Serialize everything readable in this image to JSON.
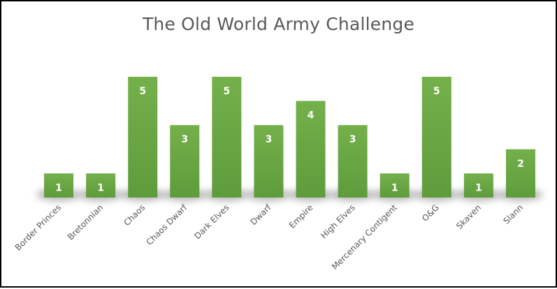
{
  "chart_data": {
    "type": "bar",
    "title": "The Old World Army Challenge",
    "xlabel": "",
    "ylabel": "",
    "categories": [
      "Border Princes",
      "Bretonnian",
      "Chaos",
      "Chaos Dwarf",
      "Dark Elves",
      "Dwarf",
      "Empire",
      "High Elves",
      "Mercenary Contigent",
      "O&G",
      "Skaven",
      "Slann"
    ],
    "values": [
      1,
      1,
      5,
      3,
      5,
      3,
      4,
      3,
      1,
      5,
      1,
      2
    ],
    "ylim": [
      0,
      5
    ],
    "grid": false,
    "legend": "none",
    "data_labels": true,
    "bar_color": "#70AD47",
    "bar_color_dark": "#5C9A3A"
  }
}
